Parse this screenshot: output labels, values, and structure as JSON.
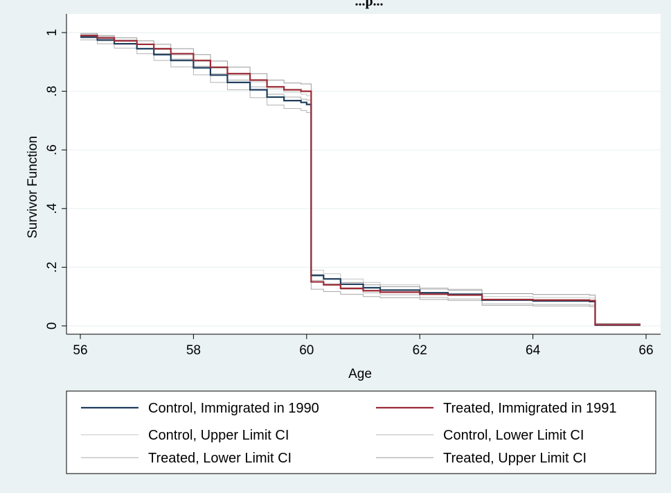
{
  "chart_data": {
    "type": "line",
    "step": true,
    "title": "...p...",
    "xlabel": "Age",
    "ylabel": "Survivor Function",
    "xlim": [
      56,
      66
    ],
    "ylim": [
      0,
      1
    ],
    "xticks": [
      56,
      58,
      60,
      62,
      64,
      66
    ],
    "yticks": [
      0,
      0.2,
      0.4,
      0.6,
      0.8,
      1
    ],
    "ytick_labels": [
      "0",
      ".2",
      ".4",
      ".6",
      ".8",
      "1"
    ],
    "grid": true,
    "legend_position": "bottom",
    "series": [
      {
        "name": "Control, Immigrated in 1990",
        "color": "#1f3e5d",
        "width": 2.2,
        "x": [
          56,
          56.3,
          56.6,
          57,
          57.3,
          57.6,
          58,
          58.3,
          58.6,
          59,
          59.3,
          59.6,
          59.9,
          60,
          60.08,
          60.08,
          60.3,
          60.6,
          61,
          61.3,
          62,
          62.5,
          63.1,
          63.1,
          64,
          65,
          65.1,
          65.1,
          65.9
        ],
        "y": [
          0.985,
          0.975,
          0.962,
          0.945,
          0.925,
          0.905,
          0.88,
          0.855,
          0.83,
          0.805,
          0.78,
          0.768,
          0.762,
          0.755,
          0.74,
          0.172,
          0.16,
          0.142,
          0.13,
          0.122,
          0.113,
          0.108,
          0.1,
          0.088,
          0.085,
          0.083,
          0.08,
          0.003,
          0.003
        ]
      },
      {
        "name": "Treated, Immigrated in 1991",
        "color": "#9b2a35",
        "width": 2.2,
        "x": [
          56,
          56.3,
          56.6,
          57,
          57.3,
          57.6,
          58,
          58.3,
          58.6,
          59,
          59.3,
          59.6,
          59.9,
          60,
          60.08,
          60.08,
          60.3,
          60.6,
          61,
          61.3,
          62,
          62.5,
          63.1,
          63.1,
          64,
          65,
          65.1,
          65.1,
          65.9
        ],
        "y": [
          0.99,
          0.982,
          0.972,
          0.96,
          0.945,
          0.928,
          0.905,
          0.882,
          0.86,
          0.838,
          0.815,
          0.805,
          0.8,
          0.8,
          0.76,
          0.15,
          0.14,
          0.128,
          0.12,
          0.115,
          0.108,
          0.105,
          0.1,
          0.09,
          0.088,
          0.086,
          0.083,
          0.004,
          0.004
        ]
      },
      {
        "name": "Control, Upper Limit CI",
        "color": "#c4c4c4",
        "width": 1,
        "x": [
          56,
          56.3,
          56.6,
          57,
          57.3,
          57.6,
          58,
          58.3,
          58.6,
          59,
          59.3,
          59.6,
          59.9,
          60,
          60.08,
          60.08,
          60.3,
          60.6,
          61,
          61.3,
          62,
          62.5,
          63.1,
          63.1,
          64,
          65,
          65.1,
          65.1,
          65.9
        ],
        "y": [
          0.993,
          0.986,
          0.975,
          0.96,
          0.942,
          0.924,
          0.902,
          0.878,
          0.855,
          0.832,
          0.808,
          0.797,
          0.79,
          0.785,
          0.77,
          0.19,
          0.178,
          0.16,
          0.148,
          0.14,
          0.13,
          0.125,
          0.118,
          0.1,
          0.097,
          0.095,
          0.092,
          0.008,
          0.008
        ]
      },
      {
        "name": "Control, Lower Limit CI",
        "color": "#b4b4b4",
        "width": 1,
        "x": [
          56,
          56.3,
          56.6,
          57,
          57.3,
          57.6,
          58,
          58.3,
          58.6,
          59,
          59.3,
          59.6,
          59.9,
          60,
          60.08,
          60.08,
          60.3,
          60.6,
          61,
          61.3,
          62,
          62.5,
          63.1,
          63.1,
          64,
          65,
          65.1,
          65.1,
          65.9
        ],
        "y": [
          0.975,
          0.962,
          0.947,
          0.928,
          0.905,
          0.883,
          0.856,
          0.83,
          0.805,
          0.778,
          0.753,
          0.741,
          0.734,
          0.727,
          0.71,
          0.155,
          0.143,
          0.125,
          0.113,
          0.106,
          0.097,
          0.092,
          0.085,
          0.075,
          0.073,
          0.071,
          0.068,
          0.001,
          0.001
        ]
      },
      {
        "name": "Treated, Lower Limit CI",
        "color": "#a8a8a8",
        "width": 1,
        "x": [
          56,
          56.3,
          56.6,
          57,
          57.3,
          57.6,
          58,
          58.3,
          58.6,
          59,
          59.3,
          59.6,
          59.9,
          60,
          60.08,
          60.08,
          60.3,
          60.6,
          61,
          61.3,
          62,
          62.5,
          63.1,
          63.1,
          64,
          65,
          65.1,
          65.1,
          65.9
        ],
        "y": [
          0.982,
          0.972,
          0.96,
          0.945,
          0.928,
          0.91,
          0.885,
          0.86,
          0.838,
          0.815,
          0.79,
          0.78,
          0.773,
          0.77,
          0.73,
          0.125,
          0.117,
          0.108,
          0.1,
          0.096,
          0.09,
          0.087,
          0.083,
          0.07,
          0.068,
          0.066,
          0.063,
          0.001,
          0.001
        ]
      },
      {
        "name": "Treated, Upper Limit CI",
        "color": "#989898",
        "width": 1,
        "x": [
          56,
          56.3,
          56.6,
          57,
          57.3,
          57.6,
          58,
          58.3,
          58.6,
          59,
          59.3,
          59.6,
          59.9,
          60,
          60.08,
          60.08,
          60.3,
          60.6,
          61,
          61.3,
          62,
          62.5,
          63.1,
          63.1,
          64,
          65,
          65.1,
          65.1,
          65.9
        ],
        "y": [
          0.997,
          0.99,
          0.982,
          0.972,
          0.96,
          0.945,
          0.925,
          0.903,
          0.882,
          0.86,
          0.838,
          0.828,
          0.825,
          0.825,
          0.795,
          0.175,
          0.162,
          0.148,
          0.14,
          0.134,
          0.126,
          0.122,
          0.117,
          0.11,
          0.107,
          0.105,
          0.102,
          0.008,
          0.008
        ]
      }
    ]
  }
}
